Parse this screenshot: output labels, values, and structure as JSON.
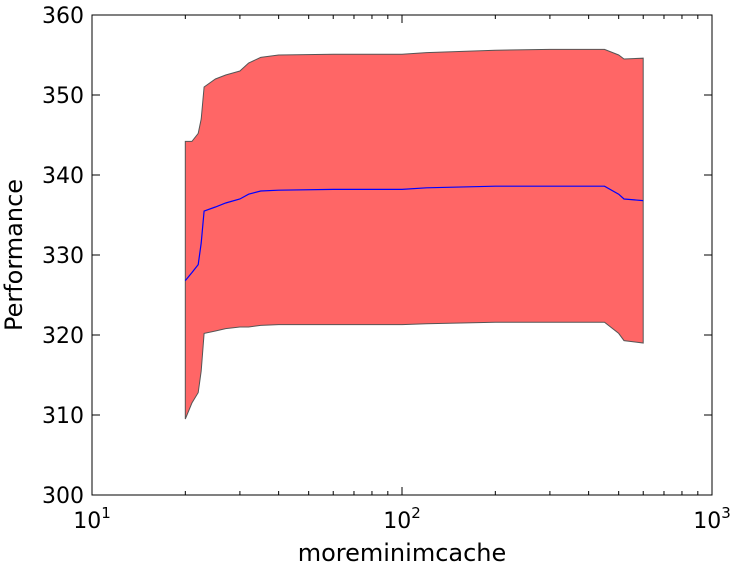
{
  "chart_data": {
    "type": "area",
    "xlabel": "moreminimcache",
    "ylabel": "Performance",
    "xscale": "log",
    "xlim": [
      10,
      1000
    ],
    "ylim": [
      300,
      360
    ],
    "grid": false,
    "x_tick_labels": [
      {
        "value": 10,
        "base": "10",
        "exp": "1"
      },
      {
        "value": 100,
        "base": "10",
        "exp": "2"
      },
      {
        "value": 1000,
        "base": "10",
        "exp": "3"
      }
    ],
    "y_ticks": [
      300,
      310,
      320,
      330,
      340,
      350,
      360
    ],
    "band_color": "#ff6666",
    "band_edge_color": "#555555",
    "line_color": "#0000ff",
    "x": [
      20,
      21,
      22,
      22.5,
      23,
      25,
      27,
      30,
      32,
      35,
      40,
      60,
      100,
      120,
      200,
      300,
      450,
      500,
      520,
      600
    ],
    "mean": [
      326.8,
      327.8,
      328.8,
      331.5,
      335.5,
      336.0,
      336.5,
      337.0,
      337.6,
      338.0,
      338.1,
      338.2,
      338.2,
      338.4,
      338.6,
      338.6,
      338.6,
      337.6,
      337.0,
      336.8
    ],
    "upper": [
      344.2,
      344.2,
      345.2,
      347.0,
      351.0,
      352.0,
      352.5,
      353.0,
      354.0,
      354.7,
      355.0,
      355.1,
      355.1,
      355.3,
      355.6,
      355.7,
      355.7,
      355.0,
      354.5,
      354.6
    ],
    "lower": [
      309.5,
      311.5,
      312.8,
      315.5,
      320.2,
      320.5,
      320.8,
      321.0,
      321.0,
      321.2,
      321.3,
      321.3,
      321.3,
      321.4,
      321.6,
      321.6,
      321.6,
      320.2,
      319.3,
      319.0
    ]
  }
}
